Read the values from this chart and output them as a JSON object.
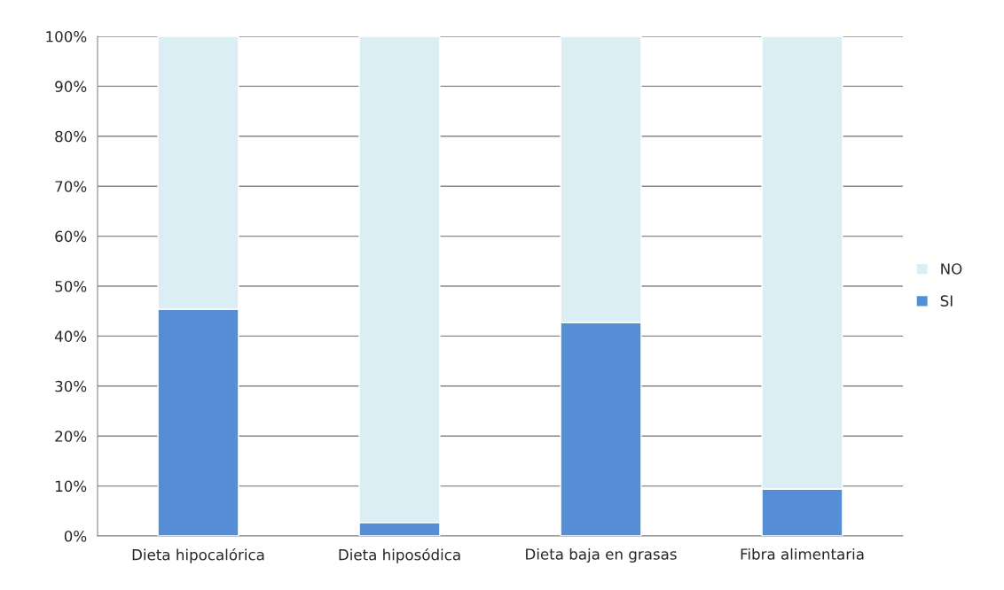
{
  "chart_data": {
    "type": "bar",
    "stacked": true,
    "categories": [
      "Dieta hipocalórica",
      "Dieta hiposódica",
      "Dieta baja en grasas",
      "Fibra alimentaria"
    ],
    "series": [
      {
        "name": "SI",
        "color": "#558ed5",
        "values": [
          45.4,
          2.7,
          42.7,
          9.4
        ]
      },
      {
        "name": "NO",
        "color": "#dbeef4",
        "values": [
          54.6,
          97.3,
          57.3,
          90.6
        ]
      }
    ],
    "ylim": [
      0,
      100
    ],
    "yticks": [
      {
        "value": 0,
        "label": "0%"
      },
      {
        "value": 10,
        "label": "10%"
      },
      {
        "value": 20,
        "label": "20%"
      },
      {
        "value": 30,
        "label": "30%"
      },
      {
        "value": 40,
        "label": "40%"
      },
      {
        "value": 50,
        "label": "50%"
      },
      {
        "value": 60,
        "label": "60%"
      },
      {
        "value": 70,
        "label": "70%"
      },
      {
        "value": 80,
        "label": "80%"
      },
      {
        "value": 90,
        "label": "90%"
      },
      {
        "value": 100,
        "label": "100%"
      }
    ],
    "grid": "y",
    "legend": "right"
  }
}
